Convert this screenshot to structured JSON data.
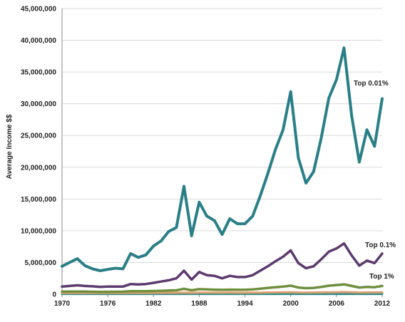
{
  "chart_data": {
    "type": "line",
    "title": "",
    "xlabel": "",
    "ylabel": "Average Income $$",
    "ylim": [
      0,
      45000000
    ],
    "xlim": [
      1970,
      2012
    ],
    "grid": true,
    "x_ticks": [
      "1970",
      "1976",
      "1982",
      "1988",
      "1994",
      "2000",
      "2006",
      "2012"
    ],
    "y_ticks": [
      "0",
      "5,000,000",
      "10,000,000",
      "15,000,000",
      "20,000,000",
      "25,000,000",
      "30,000,000",
      "35,000,000",
      "40,000,000",
      "45,000,000"
    ],
    "x": [
      1970,
      1971,
      1972,
      1973,
      1974,
      1975,
      1976,
      1977,
      1978,
      1979,
      1980,
      1981,
      1982,
      1983,
      1984,
      1985,
      1986,
      1987,
      1988,
      1989,
      1990,
      1991,
      1992,
      1993,
      1994,
      1995,
      1996,
      1997,
      1998,
      1999,
      2000,
      2001,
      2002,
      2003,
      2004,
      2005,
      2006,
      2007,
      2008,
      2009,
      2010,
      2011,
      2012
    ],
    "series": [
      {
        "name": "Top 0.01%",
        "color": "#2a7f87",
        "values": [
          4400000,
          5000000,
          5600000,
          4500000,
          4000000,
          3700000,
          3900000,
          4100000,
          4000000,
          6400000,
          5800000,
          6200000,
          7600000,
          8400000,
          9900000,
          10500000,
          17000000,
          9200000,
          14500000,
          12300000,
          11600000,
          9400000,
          11900000,
          11100000,
          11100000,
          12300000,
          15500000,
          19000000,
          22800000,
          25900000,
          31900000,
          21500000,
          17500000,
          19300000,
          24600000,
          30900000,
          33800000,
          38800000,
          28100000,
          20800000,
          25900000,
          23300000,
          30800000
        ]
      },
      {
        "name": "Top 0.1%",
        "color": "#5c3a6e",
        "values": [
          1200000,
          1300000,
          1400000,
          1300000,
          1250000,
          1150000,
          1200000,
          1200000,
          1200000,
          1600000,
          1550000,
          1600000,
          1800000,
          2000000,
          2200000,
          2500000,
          3700000,
          2300000,
          3500000,
          3000000,
          2900000,
          2500000,
          2900000,
          2700000,
          2700000,
          3000000,
          3700000,
          4400000,
          5200000,
          5900000,
          6900000,
          4900000,
          4100000,
          4400000,
          5500000,
          6700000,
          7200000,
          8000000,
          6100000,
          4500000,
          5300000,
          4900000,
          6400000
        ]
      },
      {
        "name": "Top 1%",
        "color": "#6f8f3e",
        "values": [
          400000,
          420000,
          430000,
          410000,
          390000,
          370000,
          380000,
          390000,
          400000,
          480000,
          470000,
          480000,
          500000,
          540000,
          580000,
          620000,
          850000,
          620000,
          800000,
          750000,
          720000,
          680000,
          720000,
          700000,
          700000,
          760000,
          880000,
          1000000,
          1100000,
          1200000,
          1350000,
          1050000,
          950000,
          1000000,
          1150000,
          1350000,
          1450000,
          1550000,
          1300000,
          1050000,
          1150000,
          1100000,
          1300000
        ]
      },
      {
        "color": "#e0a070",
        "values": [
          200000,
          200000,
          205000,
          200000,
          195000,
          190000,
          192000,
          195000,
          198000,
          210000,
          208000,
          210000,
          212000,
          218000,
          224000,
          230000,
          260000,
          228000,
          250000,
          245000,
          242000,
          238000,
          242000,
          240000,
          240000,
          248000,
          262000,
          275000,
          288000,
          300000,
          320000,
          285000,
          270000,
          278000,
          295000,
          315000,
          330000,
          345000,
          310000,
          280000,
          295000,
          290000,
          310000
        ]
      },
      {
        "color": "#2d8c86",
        "values": [
          40000,
          40000,
          40000,
          40000,
          40000,
          40000,
          40000,
          40000,
          40000,
          40000,
          40000,
          40000,
          40000,
          40000,
          40000,
          40000,
          40000,
          40000,
          40000,
          40000,
          40000,
          40000,
          40000,
          40000,
          40000,
          40000,
          40000,
          40000,
          40000,
          40000,
          40000,
          40000,
          40000,
          40000,
          40000,
          40000,
          40000,
          40000,
          40000,
          40000,
          40000,
          40000,
          40000
        ]
      }
    ]
  }
}
